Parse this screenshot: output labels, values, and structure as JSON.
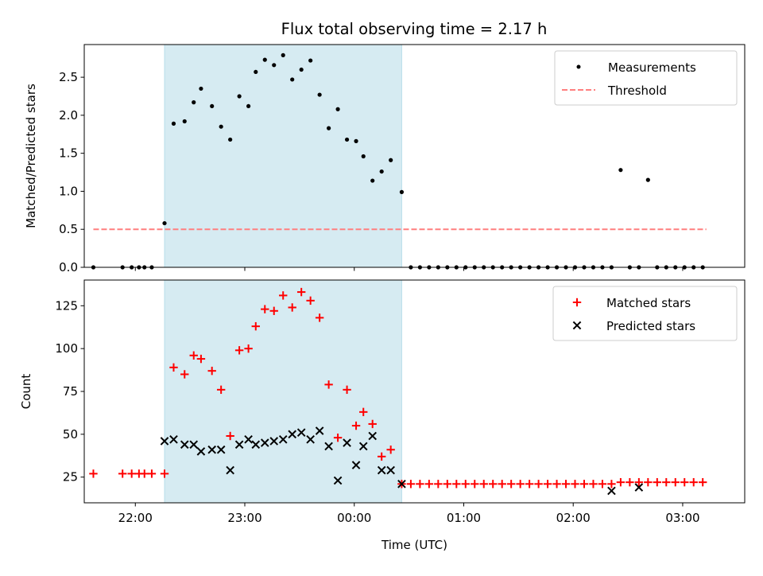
{
  "title": "Flux total observing time = 2.17 h",
  "colors": {
    "shade": "#add8e6",
    "measurement": "#000000",
    "threshold": "#ff7f7f",
    "matched": "#ff0000",
    "predicted": "#000000"
  },
  "chart_data": [
    {
      "type": "scatter",
      "panel": "top",
      "ylabel": "Matched/Predicted stars",
      "xlabel": "",
      "xlim": [
        "21:32",
        "03:34"
      ],
      "ylim": [
        0,
        2.93
      ],
      "y_ticks": [
        "0.0",
        "0.5",
        "1.0",
        "1.5",
        "2.0",
        "2.5"
      ],
      "x_ticks": [
        "22:00",
        "23:00",
        "00:00",
        "01:00",
        "02:00",
        "03:00"
      ],
      "x_tick_labels_visible": false,
      "shaded_interval": [
        "22:16",
        "00:26"
      ],
      "legend": {
        "placement": "top-right",
        "entries": [
          "Measurements",
          "Threshold"
        ]
      },
      "threshold": {
        "name": "Threshold",
        "value": 0.5,
        "x": [
          "21:37",
          "03:13"
        ]
      },
      "series": [
        {
          "name": "Measurements",
          "x": [
            "21:37",
            "21:53",
            "21:58",
            "22:02",
            "22:05",
            "22:09",
            "22:16",
            "22:21",
            "22:27",
            "22:32",
            "22:36",
            "22:42",
            "22:47",
            "22:52",
            "22:57",
            "23:02",
            "23:06",
            "23:11",
            "23:16",
            "23:21",
            "23:26",
            "23:31",
            "23:36",
            "23:41",
            "23:46",
            "23:51",
            "23:56",
            "00:01",
            "00:05",
            "00:10",
            "00:15",
            "00:20",
            "00:26",
            "00:31",
            "00:36",
            "00:41",
            "00:46",
            "00:51",
            "00:56",
            "01:01",
            "01:06",
            "01:11",
            "01:16",
            "01:21",
            "01:26",
            "01:31",
            "01:36",
            "01:41",
            "01:46",
            "01:51",
            "01:56",
            "02:01",
            "02:06",
            "02:11",
            "02:16",
            "02:21",
            "02:26",
            "02:31",
            "02:36",
            "02:41",
            "02:46",
            "02:51",
            "02:56",
            "03:01",
            "03:06",
            "03:11"
          ],
          "values": [
            0.0,
            0.0,
            0.0,
            0.0,
            0.0,
            0.0,
            0.58,
            1.89,
            1.92,
            2.17,
            2.35,
            2.12,
            1.85,
            1.68,
            2.25,
            2.12,
            2.57,
            2.73,
            2.66,
            2.79,
            2.47,
            2.6,
            2.72,
            2.27,
            1.83,
            2.08,
            1.68,
            1.66,
            1.46,
            1.14,
            1.26,
            1.41,
            0.99,
            0.0,
            0.0,
            0.0,
            0.0,
            0.0,
            0.0,
            0.0,
            0.0,
            0.0,
            0.0,
            0.0,
            0.0,
            0.0,
            0.0,
            0.0,
            0.0,
            0.0,
            0.0,
            0.0,
            0.0,
            0.0,
            0.0,
            0.0,
            1.28,
            0.0,
            0.0,
            1.15,
            0.0,
            0.0,
            0.0,
            0.0,
            0.0,
            0.0
          ]
        }
      ]
    },
    {
      "type": "scatter",
      "panel": "bottom",
      "ylabel": "Count",
      "xlabel": "Time (UTC)",
      "xlim": [
        "21:32",
        "03:34"
      ],
      "ylim": [
        10,
        140
      ],
      "y_ticks": [
        "25",
        "50",
        "75",
        "100",
        "125"
      ],
      "x_ticks": [
        "22:00",
        "23:00",
        "00:00",
        "01:00",
        "02:00",
        "03:00"
      ],
      "shaded_interval": [
        "22:16",
        "00:26"
      ],
      "legend": {
        "placement": "top-right",
        "entries": [
          "Matched stars",
          "Predicted stars"
        ]
      },
      "series": [
        {
          "name": "Matched stars",
          "marker": "+",
          "x": [
            "21:37",
            "21:53",
            "21:58",
            "22:02",
            "22:05",
            "22:09",
            "22:16",
            "22:21",
            "22:27",
            "22:32",
            "22:36",
            "22:42",
            "22:47",
            "22:52",
            "22:57",
            "23:02",
            "23:06",
            "23:11",
            "23:16",
            "23:21",
            "23:26",
            "23:31",
            "23:36",
            "23:41",
            "23:46",
            "23:51",
            "23:56",
            "00:01",
            "00:05",
            "00:10",
            "00:15",
            "00:20",
            "00:26",
            "00:31",
            "00:36",
            "00:41",
            "00:46",
            "00:51",
            "00:56",
            "01:01",
            "01:06",
            "01:11",
            "01:16",
            "01:21",
            "01:26",
            "01:31",
            "01:36",
            "01:41",
            "01:46",
            "01:51",
            "01:56",
            "02:01",
            "02:06",
            "02:11",
            "02:16",
            "02:21",
            "02:26",
            "02:31",
            "02:36",
            "02:41",
            "02:46",
            "02:51",
            "02:56",
            "03:01",
            "03:06",
            "03:11"
          ],
          "values": [
            27,
            27,
            27,
            27,
            27,
            27,
            27,
            89,
            85,
            96,
            94,
            87,
            76,
            49,
            99,
            100,
            113,
            123,
            122,
            131,
            124,
            133,
            128,
            118,
            79,
            48,
            76,
            55,
            63,
            56,
            37,
            41,
            21,
            21,
            21,
            21,
            21,
            21,
            21,
            21,
            21,
            21,
            21,
            21,
            21,
            21,
            21,
            21,
            21,
            21,
            21,
            21,
            21,
            21,
            21,
            21,
            22,
            22,
            22,
            22,
            22,
            22,
            22,
            22,
            22,
            22
          ]
        },
        {
          "name": "Predicted stars",
          "marker": "x",
          "x": [
            "22:16",
            "22:21",
            "22:27",
            "22:32",
            "22:36",
            "22:42",
            "22:47",
            "22:52",
            "22:57",
            "23:02",
            "23:06",
            "23:11",
            "23:16",
            "23:21",
            "23:26",
            "23:31",
            "23:36",
            "23:41",
            "23:46",
            "23:51",
            "23:56",
            "00:01",
            "00:05",
            "00:10",
            "00:15",
            "00:20",
            "00:26",
            "02:21",
            "02:36"
          ],
          "values": [
            46,
            47,
            44,
            44,
            40,
            41,
            41,
            29,
            44,
            47,
            44,
            45,
            46,
            47,
            50,
            51,
            47,
            52,
            43,
            23,
            45,
            32,
            43,
            49,
            29,
            29,
            21,
            17,
            19
          ]
        }
      ]
    }
  ]
}
